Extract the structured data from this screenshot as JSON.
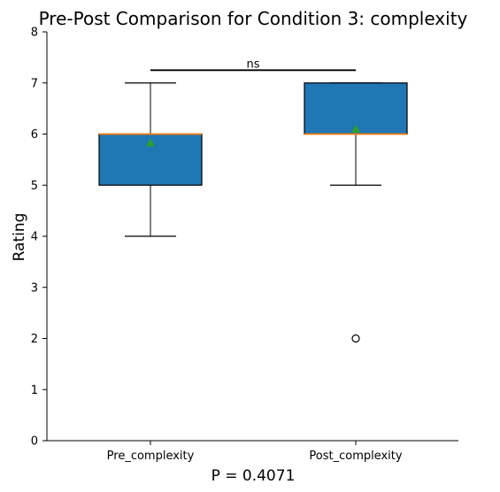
{
  "chart_data": {
    "type": "box",
    "title": "Pre-Post Comparison for Condition 3: complexity",
    "xlabel": "P = 0.4071",
    "ylabel": "Rating",
    "ylim": [
      0,
      8
    ],
    "yticks": [
      "0",
      "1",
      "2",
      "3",
      "4",
      "5",
      "6",
      "7",
      "8"
    ],
    "categories": [
      "Pre_complexity",
      "Post_complexity"
    ],
    "boxes": [
      {
        "category": "Pre_complexity",
        "whisker_low": 4,
        "q1": 5,
        "median": 6,
        "q3": 6,
        "whisker_high": 7,
        "mean": 5.83,
        "outliers": []
      },
      {
        "category": "Post_complexity",
        "whisker_low": 5,
        "q1": 6,
        "median": 6,
        "q3": 7,
        "whisker_high": 7,
        "mean": 6.1,
        "outliers": [
          2
        ]
      }
    ],
    "significance": {
      "label": "ns",
      "y": 7.25
    },
    "colors": {
      "box_fill": "#1f77b4",
      "median": "#ff7f0e",
      "mean_marker": "#2ca02c",
      "line": "#000000"
    },
    "grid": false,
    "spines": [
      "left",
      "bottom"
    ]
  }
}
